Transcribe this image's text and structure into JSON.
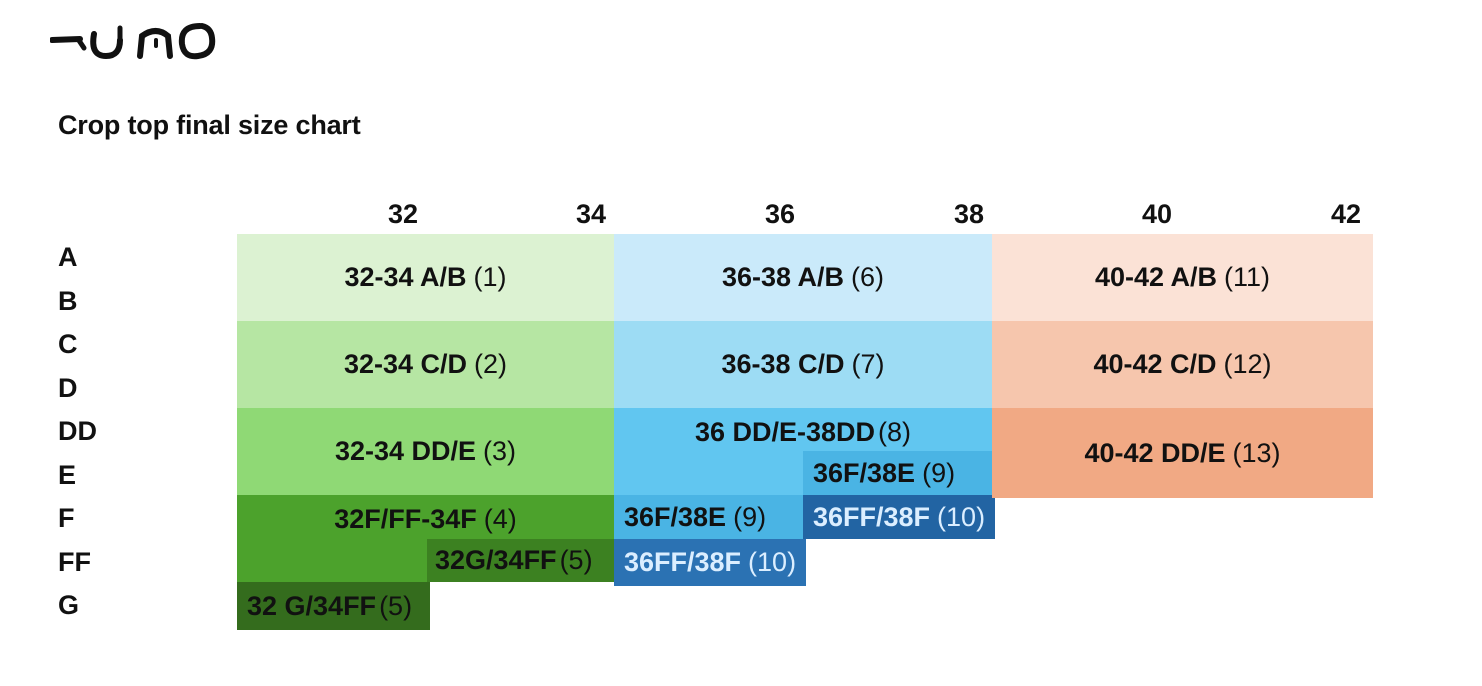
{
  "brand": {
    "logo_icon": "uno-brush-logo"
  },
  "title": "Crop top final size chart",
  "band_sizes": [
    "32",
    "34",
    "36",
    "38",
    "40",
    "42"
  ],
  "cup_sizes": [
    "A",
    "B",
    "C",
    "D",
    "DD",
    "E",
    "F",
    "FF",
    "G"
  ],
  "colors": {
    "green_1": "#dcf2d2",
    "green_2": "#b6e6a3",
    "green_3": "#8fd975",
    "green_4": "#4ca22c",
    "green_5": "#3c8121",
    "green_6": "#346c1d",
    "blue_1": "#caeafa",
    "blue_2": "#9ddcf4",
    "blue_3": "#61c6f0",
    "blue_4": "#2b72b3",
    "blue_5": "#2264a3",
    "orange_1": "#fbe2d6",
    "orange_2": "#f6c6ad",
    "orange_3": "#f1a984"
  },
  "cells": {
    "c1": {
      "size": "32-34 A/B",
      "num": "(1)"
    },
    "c2": {
      "size": "32-34 C/D",
      "num": "(2)"
    },
    "c3": {
      "size": "32-34 DD/E",
      "num": "(3)"
    },
    "c4": {
      "size": "32F/FF-34F",
      "num": "(4)"
    },
    "c5a": {
      "size": "32G/34FF",
      "num": "(5)"
    },
    "c5b": {
      "size": "32 G/34FF",
      "num": "(5)"
    },
    "c6": {
      "size": "36-38 A/B",
      "num": "(6)"
    },
    "c7": {
      "size": "36-38 C/D",
      "num": "(7)"
    },
    "c8": {
      "size": "36 DD/E-38DD",
      "num": "(8)"
    },
    "c9a": {
      "size": "36F/38E",
      "num": "(9)"
    },
    "c9b": {
      "size": "36F/38E",
      "num": "(9)"
    },
    "c10a": {
      "size": "36FF/38F",
      "num": "(10)"
    },
    "c10b": {
      "size": "36FF/38F",
      "num": "(10)"
    },
    "c11": {
      "size": "40-42 A/B",
      "num": "(11)"
    },
    "c12": {
      "size": "40-42 C/D",
      "num": "(12)"
    },
    "c13": {
      "size": "40-42 DD/E",
      "num": "(13)"
    }
  }
}
